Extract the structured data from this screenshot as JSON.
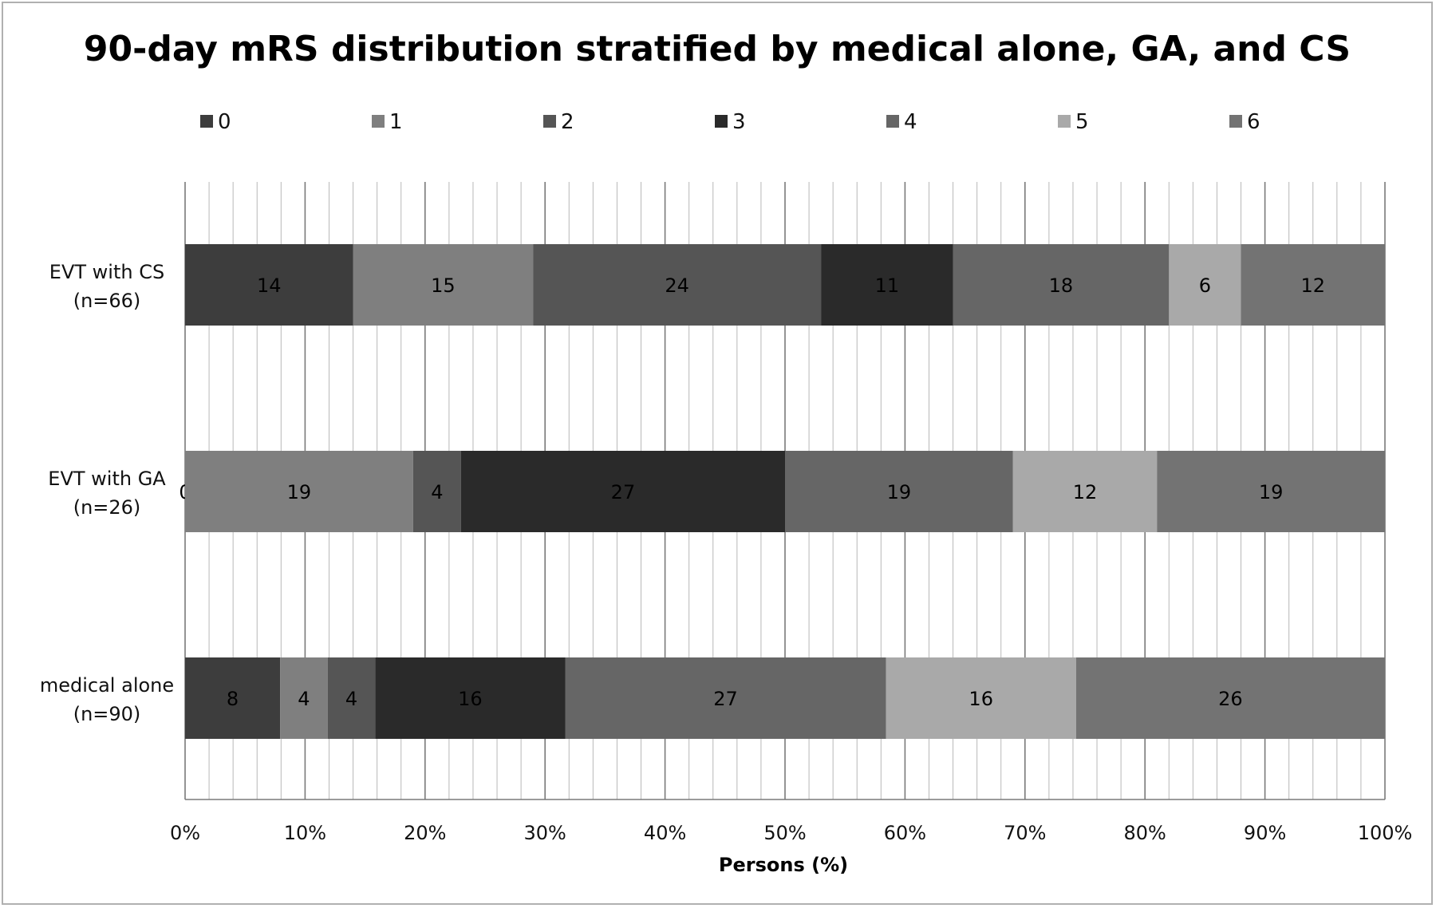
{
  "chart_data": {
    "type": "bar",
    "orientation": "horizontal",
    "stacked": "percent",
    "title": "90-day mRS distribution stratified by medical alone, GA, and CS",
    "xlabel": "Persons (%)",
    "ylabel": "",
    "xlim": [
      0,
      100
    ],
    "x_ticks": [
      "0%",
      "10%",
      "20%",
      "30%",
      "40%",
      "50%",
      "60%",
      "70%",
      "80%",
      "90%",
      "100%"
    ],
    "legend_position": "top",
    "grid": true,
    "categories": [
      {
        "line1": "EVT with CS",
        "line2": "(n=66)"
      },
      {
        "line1": "EVT with GA",
        "line2": "(n=26)"
      },
      {
        "line1": "medical alone",
        "line2": "(n=90)"
      }
    ],
    "series": [
      {
        "name": "0",
        "color": "#3d3d3d",
        "values": [
          14,
          0,
          8
        ]
      },
      {
        "name": "1",
        "color": "#7f7f7f",
        "values": [
          15,
          19,
          4
        ]
      },
      {
        "name": "2",
        "color": "#555555",
        "values": [
          24,
          4,
          4
        ]
      },
      {
        "name": "3",
        "color": "#2a2a2a",
        "values": [
          11,
          27,
          16
        ]
      },
      {
        "name": "4",
        "color": "#666666",
        "values": [
          18,
          19,
          27
        ]
      },
      {
        "name": "5",
        "color": "#a9a9a9",
        "values": [
          6,
          12,
          16
        ]
      },
      {
        "name": "6",
        "color": "#737373",
        "values": [
          12,
          19,
          26
        ]
      }
    ]
  }
}
